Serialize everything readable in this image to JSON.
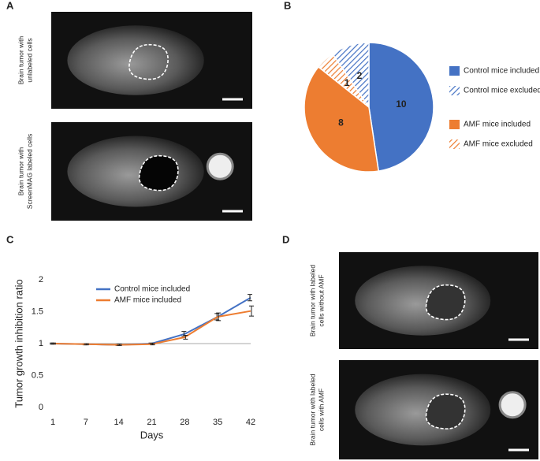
{
  "panel_labels": [
    "A",
    "B",
    "C",
    "D"
  ],
  "images": [
    {
      "lines": [
        "Brain tumor with",
        "unlabeled  cells"
      ]
    },
    {
      "lines": [
        "Brain tumor with",
        "ScreenMAG labeled cells"
      ]
    },
    {
      "lines": [
        "Brain tumor with labeled",
        "cells without AMF"
      ]
    },
    {
      "lines": [
        "Brain tumor with labeled",
        "cells with AMF"
      ]
    }
  ],
  "chart_data": [
    {
      "type": "pie",
      "categories": [
        "Control mice included",
        "AMF mice included",
        "AMF mice excluded",
        "Control mice excluded"
      ],
      "values": [
        10,
        8,
        1,
        2
      ],
      "colors": [
        "#4472c4",
        "#ed7d31",
        "#ed7d31",
        "#4472c4"
      ],
      "hatched": [
        false,
        false,
        true,
        true
      ]
    },
    {
      "type": "line",
      "xlabel": "Days",
      "ylabel": "Tumor growth inhibition ratio",
      "categories": [
        "1",
        "7",
        "14",
        "21",
        "28",
        "35",
        "42"
      ],
      "ylim": [
        0,
        2
      ],
      "yticks": [
        0,
        0.5,
        1,
        1.5,
        2
      ],
      "series": [
        {
          "name": "Control mice included",
          "color": "#4472c4",
          "values": [
            1,
            0.99,
            0.98,
            1.0,
            1.15,
            1.42,
            1.72
          ],
          "errors": [
            0.01,
            0.01,
            0.01,
            0.01,
            0.04,
            0.05,
            0.05
          ]
        },
        {
          "name": "AMF mice included",
          "color": "#ed7d31",
          "values": [
            1,
            0.99,
            0.98,
            0.99,
            1.1,
            1.42,
            1.51
          ],
          "errors": [
            0.01,
            0.01,
            0.01,
            0.01,
            0.03,
            0.06,
            0.08
          ]
        }
      ]
    }
  ]
}
